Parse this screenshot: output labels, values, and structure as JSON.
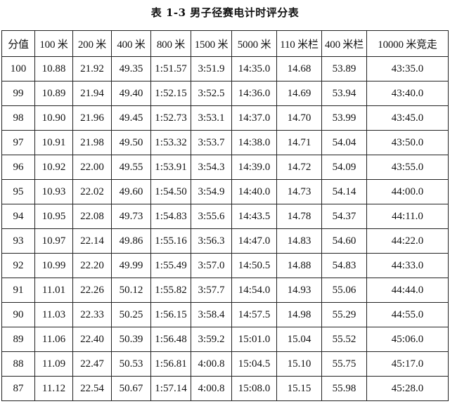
{
  "title": "表 1-3   男子径赛电计时评分表",
  "table": {
    "headers": [
      "分值",
      "100 米",
      "200 米",
      "400 米",
      "800 米",
      "1500 米",
      "5000 米",
      "110 米栏",
      "400 米栏",
      "10000 米竞走"
    ],
    "rows": [
      [
        "100",
        "10.88",
        "21.92",
        "49.35",
        "1:51.57",
        "3:51.9",
        "14:35.0",
        "14.68",
        "53.89",
        "43:35.0"
      ],
      [
        "99",
        "10.89",
        "21.94",
        "49.40",
        "1:52.15",
        "3:52.5",
        "14:36.0",
        "14.69",
        "53.94",
        "43:40.0"
      ],
      [
        "98",
        "10.90",
        "21.96",
        "49.45",
        "1:52.73",
        "3:53.1",
        "14:37.0",
        "14.70",
        "53.99",
        "43:45.0"
      ],
      [
        "97",
        "10.91",
        "21.98",
        "49.50",
        "1:53.32",
        "3:53.7",
        "14:38.0",
        "14.71",
        "54.04",
        "43:50.0"
      ],
      [
        "96",
        "10.92",
        "22.00",
        "49.55",
        "1:53.91",
        "3:54.3",
        "14:39.0",
        "14.72",
        "54.09",
        "43:55.0"
      ],
      [
        "95",
        "10.93",
        "22.02",
        "49.60",
        "1:54.50",
        "3:54.9",
        "14:40.0",
        "14.73",
        "54.14",
        "44:00.0"
      ],
      [
        "94",
        "10.95",
        "22.08",
        "49.73",
        "1:54.83",
        "3:55.6",
        "14:43.5",
        "14.78",
        "54.37",
        "44:11.0"
      ],
      [
        "93",
        "10.97",
        "22.14",
        "49.86",
        "1:55.16",
        "3:56.3",
        "14:47.0",
        "14.83",
        "54.60",
        "44:22.0"
      ],
      [
        "92",
        "10.99",
        "22.20",
        "49.99",
        "1:55.49",
        "3:57.0",
        "14:50.5",
        "14.88",
        "54.83",
        "44:33.0"
      ],
      [
        "91",
        "11.01",
        "22.26",
        "50.12",
        "1:55.82",
        "3:57.7",
        "14:54.0",
        "14.93",
        "55.06",
        "44:44.0"
      ],
      [
        "90",
        "11.03",
        "22.33",
        "50.25",
        "1:56.15",
        "3:58.4",
        "14:57.5",
        "14.98",
        "55.29",
        "44:55.0"
      ],
      [
        "89",
        "11.06",
        "22.40",
        "50.39",
        "1:56.48",
        "3:59.2",
        "15:01.0",
        "15.04",
        "55.52",
        "45:06.0"
      ],
      [
        "88",
        "11.09",
        "22.47",
        "50.53",
        "1:56.81",
        "4:00.8",
        "15:04.5",
        "15.10",
        "55.75",
        "45:17.0"
      ],
      [
        "87",
        "11.12",
        "22.54",
        "50.67",
        "1:57.14",
        "4:00.8",
        "15:08.0",
        "15.15",
        "55.98",
        "45:28.0"
      ]
    ]
  }
}
